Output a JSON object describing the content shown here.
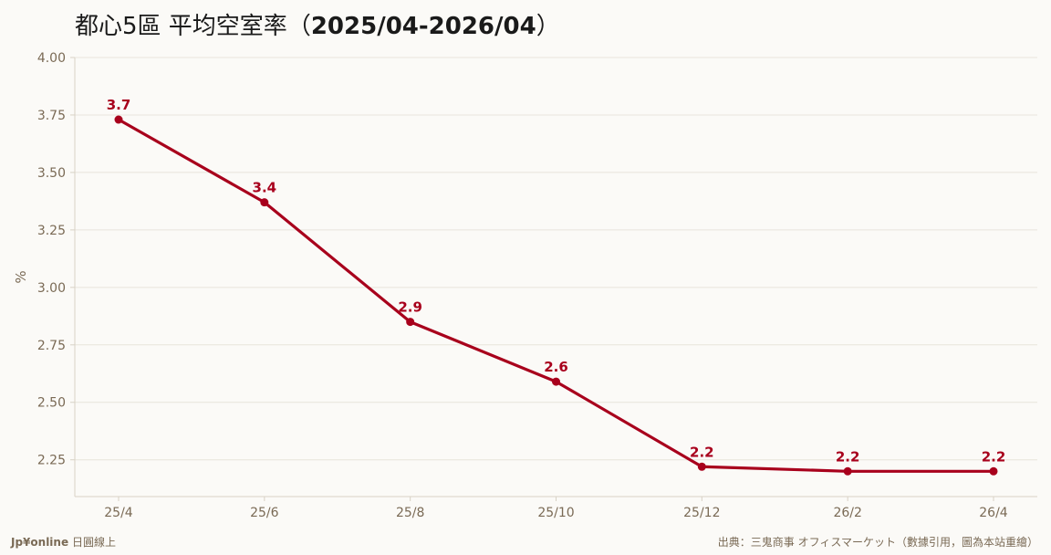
{
  "title_main": "都心5區 平均空室率",
  "title_paren_open": "（",
  "title_range": "2025/04-2026/04",
  "title_paren_close": "）",
  "footer": {
    "brand": "Jp¥online",
    "brand_suffix": "日圓線上",
    "source": "出典：三鬼商事 オフィスマーケット（數據引用，圖為本站重繪）"
  },
  "colors": {
    "line": "#a8001c",
    "grid": "#e8e4dc",
    "axis": "#d8d2c6",
    "tick": "#7a6a55",
    "background": "#fbfaf7"
  },
  "chart_data": {
    "type": "line",
    "ylabel": "%",
    "ylim": [
      2.09,
      4.0
    ],
    "yticks": [
      "2.25",
      "2.50",
      "2.75",
      "3.00",
      "3.25",
      "3.50",
      "3.75",
      "4.00"
    ],
    "ytick_values": [
      2.25,
      2.5,
      2.75,
      3.0,
      3.25,
      3.5,
      3.75,
      4.0
    ],
    "grid": true,
    "categories": [
      "25/4",
      "25/6",
      "25/8",
      "25/10",
      "25/12",
      "26/2",
      "26/4"
    ],
    "values": [
      3.73,
      3.37,
      2.85,
      2.59,
      2.22,
      2.2,
      2.2
    ],
    "data_labels": [
      "3.7",
      "3.4",
      "2.9",
      "2.6",
      "2.2",
      "2.2",
      "2.2"
    ]
  }
}
